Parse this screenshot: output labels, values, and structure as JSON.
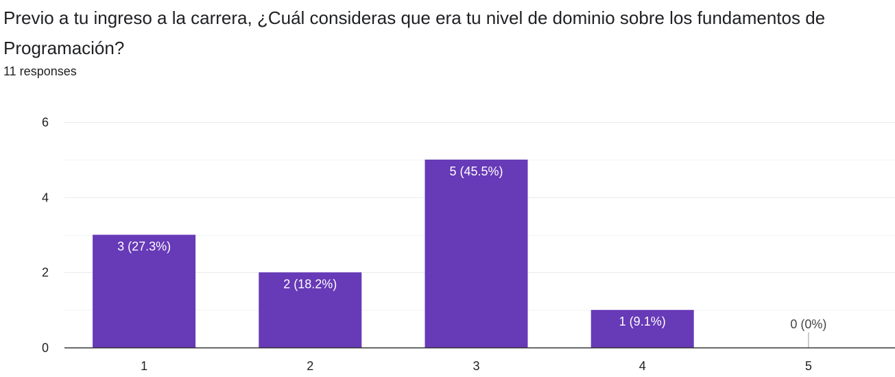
{
  "question": {
    "title": "Previo a tu ingreso a la carrera, ¿Cuál consideras que era tu nivel de dominio sobre los fundamentos de Programación?",
    "responses": "11 responses"
  },
  "colors": {
    "bar": "#673ab7",
    "gridline": "#e8eaed",
    "axis": "#333333",
    "text": "#202124",
    "bar_label_inside": "#ffffff",
    "bar_label_outside": "#444444"
  },
  "chart_data": {
    "type": "bar",
    "categories": [
      "1",
      "2",
      "3",
      "4",
      "5"
    ],
    "values": [
      3,
      2,
      5,
      1,
      0
    ],
    "data_labels": [
      "3 (27.3%)",
      "2 (18.2%)",
      "5 (45.5%)",
      "1 (9.1%)",
      "0 (0%)"
    ],
    "y_ticks": [
      "0",
      "2",
      "4",
      "6"
    ],
    "ylim": [
      0,
      6
    ],
    "minor_gridlines": [
      1,
      3,
      5
    ],
    "grid": true,
    "legend": "none",
    "title": "",
    "xlabel": "",
    "ylabel": ""
  }
}
